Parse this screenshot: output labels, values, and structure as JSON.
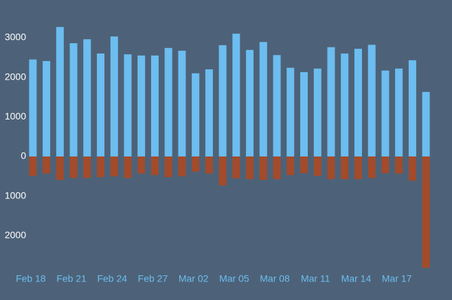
{
  "chart_data": {
    "type": "bar",
    "categories": [
      "Feb 18",
      null,
      null,
      "Feb 21",
      null,
      null,
      "Feb 24",
      null,
      null,
      "Feb 27",
      null,
      null,
      "Mar 02",
      null,
      null,
      "Mar 05",
      null,
      null,
      "Mar 08",
      null,
      null,
      "Mar 11",
      null,
      null,
      "Mar 14",
      null,
      null,
      "Mar 17",
      null,
      null
    ],
    "series": [
      {
        "color": "#6cbdf0",
        "values": [
          2450,
          2410,
          3270,
          2860,
          2960,
          2600,
          3030,
          2580,
          2550,
          2550,
          2740,
          2670,
          2100,
          2200,
          2810,
          3100,
          2690,
          2890,
          2560,
          2240,
          2130,
          2220,
          2760,
          2600,
          2720,
          2820,
          2170,
          2220,
          2430,
          1630
        ]
      },
      {
        "color": "#a34b2b",
        "values": [
          -490,
          -430,
          -590,
          -540,
          -540,
          -520,
          -500,
          -540,
          -430,
          -470,
          -520,
          -500,
          -380,
          -430,
          -730,
          -550,
          -570,
          -590,
          -570,
          -470,
          -420,
          -490,
          -570,
          -570,
          -570,
          -540,
          -420,
          -430,
          -610,
          -2810
        ]
      }
    ],
    "ylim": [
      -2900,
      3450
    ],
    "yticks": [
      {
        "value": -2000,
        "label": "2000"
      },
      {
        "value": -1000,
        "label": "1000"
      },
      0,
      1000,
      2000,
      3000
    ],
    "grid": false
  }
}
